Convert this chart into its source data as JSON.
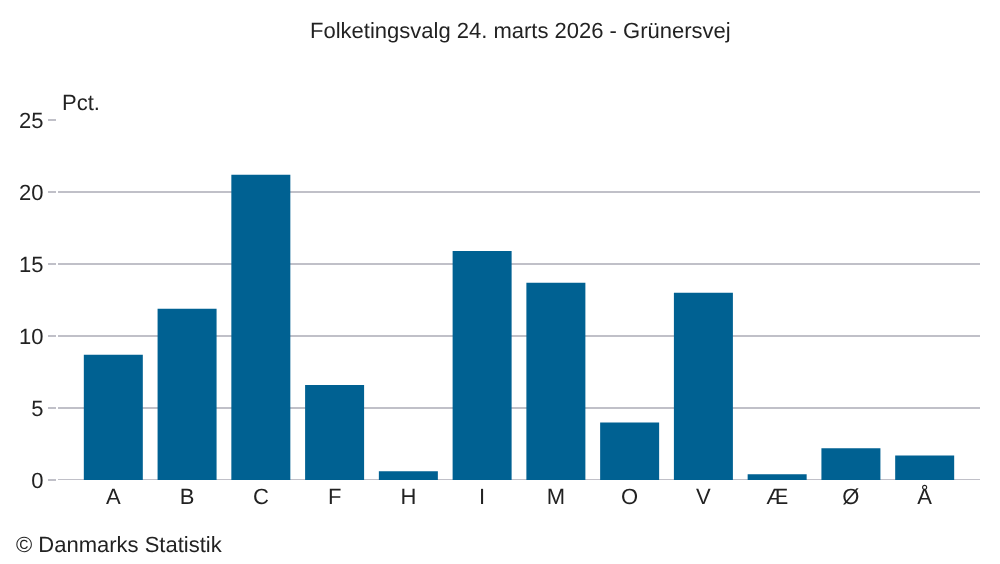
{
  "chart_data": {
    "type": "bar",
    "title": "Folketingsvalg 24. marts 2026 - Grünersvej",
    "ylabel": "Pct.",
    "categories": [
      "A",
      "B",
      "C",
      "F",
      "H",
      "I",
      "M",
      "O",
      "V",
      "Æ",
      "Ø",
      "Å"
    ],
    "values": [
      8.7,
      11.9,
      21.2,
      6.6,
      0.6,
      15.9,
      13.7,
      4.0,
      13.0,
      0.4,
      2.2,
      1.7
    ],
    "color": "#006192",
    "ylim": [
      0,
      25
    ],
    "yticks": [
      0,
      5,
      10,
      15,
      20,
      25
    ],
    "grid": "y",
    "annotations": [
      "© Danmarks Statistik"
    ]
  }
}
